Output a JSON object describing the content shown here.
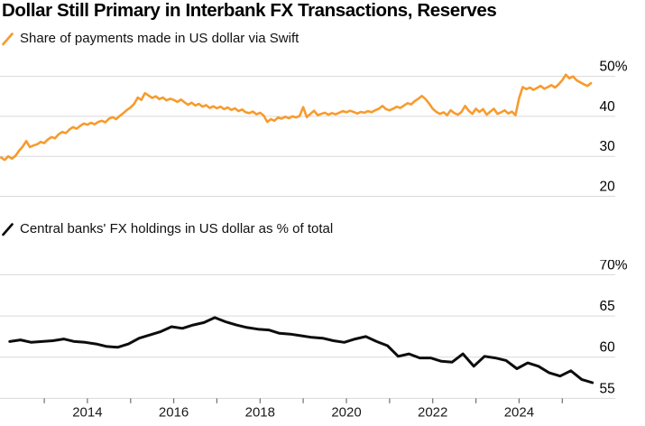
{
  "title": "Dollar Still Primary in Interbank FX Transactions, Reserves",
  "colors": {
    "accent_orange": "#F79B2E",
    "line_black": "#0d0d0d",
    "grid": "#d9d9d9",
    "tick": "#6e6e6e"
  },
  "charts": [
    {
      "legend": "Share of payments made in US dollar via Swift",
      "legend_icon": "orange-slash-icon",
      "line_color": "#F79B2E",
      "chart_data": {
        "type": "line",
        "title": "Share of payments made in US dollar via Swift",
        "unit": "%",
        "x_start": 2012.0,
        "x_step": 0.083333,
        "values": [
          29.7,
          29.1,
          30.0,
          29.4,
          30.1,
          31.4,
          32.4,
          33.8,
          32.3,
          32.7,
          33.0,
          33.6,
          33.3,
          34.2,
          34.8,
          34.5,
          35.5,
          36.1,
          35.8,
          36.7,
          37.3,
          36.9,
          37.6,
          38.2,
          37.9,
          38.4,
          38.0,
          38.6,
          38.9,
          38.5,
          39.4,
          39.8,
          39.3,
          40.1,
          40.8,
          41.6,
          42.2,
          43.1,
          44.7,
          44.1,
          45.8,
          45.2,
          44.6,
          45.0,
          44.3,
          44.7,
          44.0,
          44.4,
          44.1,
          43.6,
          44.2,
          43.5,
          42.9,
          43.4,
          42.7,
          43.1,
          42.4,
          42.8,
          42.1,
          42.5,
          42.0,
          42.4,
          41.8,
          42.2,
          41.6,
          42.0,
          41.3,
          41.7,
          41.0,
          40.8,
          41.2,
          40.5,
          40.9,
          40.2,
          38.6,
          39.3,
          38.9,
          39.7,
          39.4,
          39.9,
          39.5,
          40.0,
          39.7,
          40.1,
          42.3,
          39.8,
          40.6,
          41.4,
          40.3,
          40.6,
          40.9,
          40.4,
          40.8,
          40.5,
          40.9,
          41.3,
          41.0,
          41.4,
          41.1,
          40.7,
          41.1,
          40.9,
          41.3,
          41.0,
          41.5,
          41.9,
          42.6,
          41.8,
          41.5,
          41.9,
          42.4,
          42.1,
          42.7,
          43.3,
          43.0,
          43.8,
          44.4,
          45.1,
          44.3,
          43.2,
          41.9,
          41.1,
          40.6,
          41.0,
          40.3,
          41.5,
          40.8,
          40.4,
          41.1,
          42.6,
          41.4,
          40.6,
          41.9,
          41.1,
          41.8,
          40.4,
          41.2,
          41.9,
          40.6,
          41.0,
          41.5,
          40.7,
          41.2,
          40.3,
          44.5,
          47.3,
          46.8,
          47.2,
          46.6,
          47.1,
          47.6,
          46.9,
          47.3,
          47.8,
          47.2,
          48.0,
          49.0,
          50.4,
          49.5,
          50.0,
          49.0,
          48.5,
          48.0,
          47.6,
          48.3
        ],
        "ylim": [
          20,
          50
        ],
        "grid": true,
        "yticks": [
          {
            "value": 50,
            "label": "50%"
          },
          {
            "value": 40,
            "label": "40"
          },
          {
            "value": 30,
            "label": "30"
          },
          {
            "value": 20,
            "label": "20"
          }
        ],
        "xticks_minor": [],
        "xticks_labeled": []
      }
    },
    {
      "legend": "Central banks' FX holdings in US dollar as % of total",
      "legend_icon": "black-slash-icon",
      "line_color": "#0d0d0d",
      "chart_data": {
        "type": "line",
        "title": "Central banks' FX holdings in US dollar as % of total",
        "unit": "%",
        "x_start": 2012.2,
        "x_step": 0.25,
        "values": [
          61.9,
          62.1,
          61.8,
          61.9,
          62.0,
          62.2,
          61.9,
          61.8,
          61.6,
          61.3,
          61.2,
          61.6,
          62.3,
          62.7,
          63.1,
          63.7,
          63.5,
          63.9,
          64.2,
          64.8,
          64.3,
          63.9,
          63.6,
          63.4,
          63.3,
          62.9,
          62.8,
          62.6,
          62.4,
          62.3,
          62.0,
          61.8,
          62.2,
          62.5,
          61.9,
          61.4,
          60.1,
          60.4,
          59.9,
          59.9,
          59.5,
          59.4,
          60.4,
          58.9,
          60.1,
          59.9,
          59.6,
          58.6,
          59.3,
          58.9,
          58.1,
          57.7,
          58.35,
          57.3,
          56.9
        ],
        "ylim": [
          55,
          70
        ],
        "grid": true,
        "yticks": [
          {
            "value": 70,
            "label": "70%"
          },
          {
            "value": 65,
            "label": "65"
          },
          {
            "value": 60,
            "label": "60"
          },
          {
            "value": 55,
            "label": "55"
          }
        ],
        "xticks_minor": [
          2013,
          2014,
          2015,
          2016,
          2017,
          2018,
          2019,
          2020,
          2021,
          2022,
          2023,
          2024,
          2025
        ],
        "xticks_labeled": [
          {
            "value": 2014,
            "label": "2014"
          },
          {
            "value": 2016,
            "label": "2016"
          },
          {
            "value": 2018,
            "label": "2018"
          },
          {
            "value": 2020,
            "label": "2020"
          },
          {
            "value": 2022,
            "label": "2022"
          },
          {
            "value": 2024,
            "label": "2024"
          }
        ]
      }
    }
  ]
}
